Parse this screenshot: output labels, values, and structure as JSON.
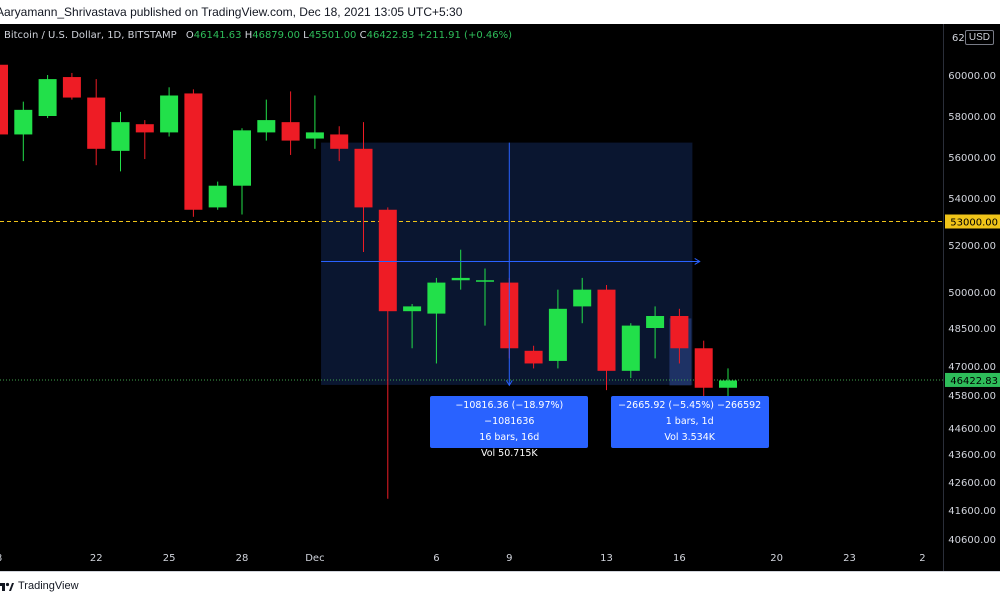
{
  "header": {
    "text": "Aaryamann_Shrivastava published on TradingView.com, Dec 18, 2021 13:05 UTC+5:30"
  },
  "legend": {
    "symbol": "Bitcoin / U.S. Dollar, 1D, BITSTAMP",
    "open_label": "O",
    "open": "46141.63",
    "high_label": "H",
    "high": "46879.00",
    "low_label": "L",
    "low": "45501.00",
    "close_label": "C",
    "close": "46422.83",
    "change": "+211.91 (+0.46%)"
  },
  "currency": "USD",
  "footer": {
    "brand": "TradingView"
  },
  "colors": {
    "up": "#22e04a",
    "down": "#ee1c25",
    "measure": "#2962ff",
    "dashed": "#f0c419"
  },
  "measurements": [
    {
      "line1": "−10816.36 (−18.97%) −1081636",
      "line2": "16 bars, 16d",
      "line3": "Vol 50.715K"
    },
    {
      "line1": "−2665.92 (−5.45%) −266592",
      "line2": "1 bars, 1d",
      "line3": "Vol 3.534K"
    }
  ],
  "chart_data": {
    "type": "candlestick",
    "symbol": "Bitcoin / U.S. Dollar",
    "interval": "1D",
    "exchange": "BITSTAMP",
    "y_ticks": [
      60000,
      58000,
      56000,
      54000,
      52000,
      50000,
      48500,
      47000,
      45800,
      44600,
      43600,
      42600,
      41600,
      40600
    ],
    "y_tick_labels": [
      "60000.00",
      "58000.00",
      "56000.00",
      "54000.00",
      "52000.00",
      "50000.00",
      "48500.00",
      "47000.00",
      "45800.00",
      "44600.00",
      "43600.00",
      "42600.00",
      "41600.00",
      "40600.00"
    ],
    "y_top_partial_label": "62",
    "x_tick_labels": [
      {
        "label": "8",
        "day": 18.0
      },
      {
        "label": "22",
        "day": 22
      },
      {
        "label": "25",
        "day": 25
      },
      {
        "label": "28",
        "day": 28
      },
      {
        "label": "Dec",
        "day": 31
      },
      {
        "label": "6",
        "day": 36
      },
      {
        "label": "9",
        "day": 39
      },
      {
        "label": "13",
        "day": 43
      },
      {
        "label": "16",
        "day": 46
      },
      {
        "label": "20",
        "day": 50
      },
      {
        "label": "23",
        "day": 53
      },
      {
        "label": "2",
        "day": 56
      }
    ],
    "horizontal_levels": [
      {
        "value": 53000,
        "label": "53000.00",
        "style": "dashed"
      },
      {
        "value": 46422.83,
        "label": "46422.83",
        "style": "dotted"
      }
    ],
    "candles": [
      {
        "day": 18,
        "o": 60500,
        "h": 60700,
        "l": 56600,
        "c": 57100
      },
      {
        "day": 19,
        "o": 57100,
        "h": 58700,
        "l": 55800,
        "c": 58300
      },
      {
        "day": 20,
        "o": 58000,
        "h": 60000,
        "l": 57900,
        "c": 59800
      },
      {
        "day": 21,
        "o": 59900,
        "h": 60100,
        "l": 58800,
        "c": 58900
      },
      {
        "day": 22,
        "o": 58900,
        "h": 59800,
        "l": 55600,
        "c": 56400
      },
      {
        "day": 23,
        "o": 56300,
        "h": 58200,
        "l": 55300,
        "c": 57700
      },
      {
        "day": 24,
        "o": 57600,
        "h": 57800,
        "l": 55900,
        "c": 57200
      },
      {
        "day": 25,
        "o": 57200,
        "h": 59400,
        "l": 57000,
        "c": 59000
      },
      {
        "day": 26,
        "o": 59100,
        "h": 59300,
        "l": 53200,
        "c": 53500
      },
      {
        "day": 27,
        "o": 53600,
        "h": 54800,
        "l": 53500,
        "c": 54600
      },
      {
        "day": 28,
        "o": 54600,
        "h": 57400,
        "l": 53300,
        "c": 57300
      },
      {
        "day": 29,
        "o": 57200,
        "h": 58800,
        "l": 56800,
        "c": 57800
      },
      {
        "day": 30,
        "o": 57700,
        "h": 59200,
        "l": 56100,
        "c": 56800
      },
      {
        "day": 31,
        "o": 56900,
        "h": 59000,
        "l": 56400,
        "c": 57200
      },
      {
        "day": 32,
        "o": 57100,
        "h": 57500,
        "l": 55800,
        "c": 56400
      },
      {
        "day": 33,
        "o": 56400,
        "h": 57700,
        "l": 51700,
        "c": 53600
      },
      {
        "day": 34,
        "o": 53500,
        "h": 53600,
        "l": 42000,
        "c": 49200
      },
      {
        "day": 35,
        "o": 49200,
        "h": 49500,
        "l": 47700,
        "c": 49400
      },
      {
        "day": 36,
        "o": 49100,
        "h": 50600,
        "l": 47100,
        "c": 50400
      },
      {
        "day": 37,
        "o": 50500,
        "h": 51800,
        "l": 50100,
        "c": 50600
      },
      {
        "day": 38,
        "o": 50500,
        "h": 51000,
        "l": 48600,
        "c": 50500
      },
      {
        "day": 39,
        "o": 50400,
        "h": 50600,
        "l": 47300,
        "c": 47700
      },
      {
        "day": 40,
        "o": 47600,
        "h": 47800,
        "l": 46900,
        "c": 47100
      },
      {
        "day": 41,
        "o": 47200,
        "h": 50100,
        "l": 46900,
        "c": 49300
      },
      {
        "day": 42,
        "o": 49400,
        "h": 50600,
        "l": 48700,
        "c": 50100
      },
      {
        "day": 43,
        "o": 50100,
        "h": 50300,
        "l": 46000,
        "c": 46800
      },
      {
        "day": 44,
        "o": 46800,
        "h": 48700,
        "l": 46500,
        "c": 48600
      },
      {
        "day": 45,
        "o": 48500,
        "h": 49400,
        "l": 47300,
        "c": 49000
      },
      {
        "day": 46,
        "o": 49000,
        "h": 49300,
        "l": 47100,
        "c": 47700
      },
      {
        "day": 47,
        "o": 47700,
        "h": 48000,
        "l": 45700,
        "c": 46100
      },
      {
        "day": 48,
        "o": 46100,
        "h": 46900,
        "l": 45500,
        "c": 46400
      }
    ]
  }
}
